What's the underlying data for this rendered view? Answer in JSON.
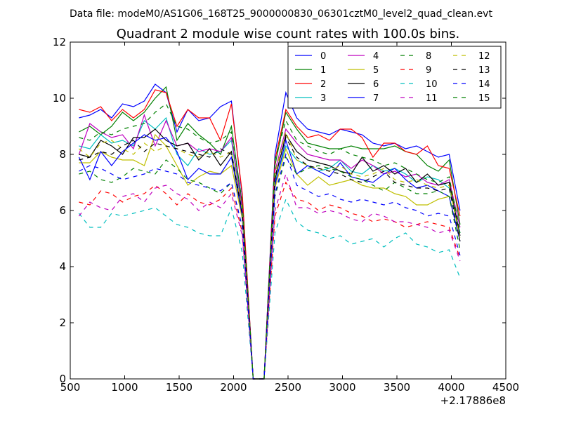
{
  "header": {
    "data_file": "Data file: modeM0/AS1G06_168T25_9000000830_06301cztM0_level2_quad_clean.evt"
  },
  "chart_data": {
    "type": "line",
    "title": "Quadrant 2 module wise count rates with 100.0s bins.",
    "xlabel": "",
    "ylabel": "",
    "x_offset_label": "+2.17886e8",
    "xlim": [
      500,
      4500
    ],
    "ylim": [
      0,
      12
    ],
    "xticks": [
      500,
      1000,
      1500,
      2000,
      2500,
      3000,
      3500,
      4000,
      4500
    ],
    "yticks": [
      0,
      2,
      4,
      6,
      8,
      10,
      12
    ],
    "grid": false,
    "legend": {
      "placement": "top-right",
      "columns": 4
    },
    "x": [
      580,
      680,
      780,
      880,
      980,
      1080,
      1180,
      1280,
      1380,
      1480,
      1580,
      1680,
      1780,
      1880,
      1980,
      2080,
      2180,
      2280,
      2380,
      2480,
      2580,
      2680,
      2780,
      2880,
      2980,
      3080,
      3180,
      3280,
      3380,
      3480,
      3580,
      3680,
      3780,
      3880,
      3980,
      4080
    ],
    "series": [
      {
        "name": "0",
        "color": "#0000ff",
        "dash": "solid",
        "values": [
          9.3,
          9.4,
          9.6,
          9.3,
          9.8,
          9.7,
          9.9,
          10.5,
          10.2,
          8.8,
          9.6,
          9.2,
          9.3,
          9.7,
          9.9,
          6.5,
          0.0,
          0.0,
          8.0,
          10.2,
          9.3,
          8.9,
          8.8,
          8.7,
          8.9,
          8.8,
          8.7,
          8.4,
          8.3,
          8.4,
          8.2,
          8.3,
          8.1,
          7.9,
          8.0,
          6.0
        ]
      },
      {
        "name": "1",
        "color": "#008000",
        "dash": "solid",
        "values": [
          8.8,
          9.0,
          8.7,
          9.0,
          9.5,
          9.2,
          9.5,
          10.0,
          10.4,
          8.5,
          9.1,
          8.7,
          8.4,
          8.0,
          9.0,
          6.2,
          0.0,
          0.0,
          7.6,
          9.5,
          8.9,
          8.4,
          8.3,
          8.2,
          8.2,
          8.3,
          8.2,
          8.2,
          8.2,
          8.3,
          8.1,
          8.0,
          7.6,
          7.4,
          7.8,
          5.5
        ]
      },
      {
        "name": "2",
        "color": "#ff0000",
        "dash": "solid",
        "values": [
          9.6,
          9.5,
          9.7,
          9.2,
          9.6,
          9.3,
          9.6,
          10.3,
          10.2,
          9.0,
          9.6,
          9.3,
          9.3,
          8.5,
          9.8,
          6.6,
          0.0,
          0.0,
          7.8,
          9.6,
          9.0,
          8.6,
          8.7,
          8.5,
          8.9,
          8.9,
          8.6,
          7.9,
          8.4,
          8.4,
          8.1,
          8.0,
          8.3,
          7.6,
          7.5,
          5.8
        ]
      },
      {
        "name": "3",
        "color": "#00bfbf",
        "dash": "solid",
        "values": [
          8.3,
          8.2,
          8.7,
          8.4,
          8.5,
          8.3,
          9.2,
          8.9,
          9.3,
          8.0,
          7.6,
          8.2,
          8.0,
          8.1,
          8.5,
          6.0,
          0.0,
          0.0,
          7.0,
          8.3,
          7.8,
          7.6,
          7.4,
          7.5,
          7.8,
          7.4,
          7.3,
          7.6,
          7.4,
          7.5,
          7.3,
          7.0,
          7.2,
          7.1,
          6.8,
          5.2
        ]
      },
      {
        "name": "4",
        "color": "#bf00bf",
        "dash": "solid",
        "values": [
          8.0,
          9.1,
          8.8,
          8.6,
          8.7,
          8.2,
          9.4,
          8.3,
          9.2,
          8.3,
          8.4,
          8.1,
          8.2,
          8.1,
          8.6,
          6.1,
          0.0,
          0.0,
          7.4,
          8.9,
          8.4,
          8.0,
          7.9,
          7.8,
          7.8,
          7.5,
          7.8,
          7.6,
          7.3,
          7.4,
          7.2,
          7.3,
          7.0,
          6.9,
          7.1,
          5.4
        ]
      },
      {
        "name": "5",
        "color": "#bfbf00",
        "dash": "solid",
        "values": [
          7.7,
          7.7,
          8.1,
          7.9,
          7.8,
          7.8,
          7.6,
          8.7,
          8.3,
          7.6,
          6.9,
          7.2,
          7.4,
          7.3,
          7.6,
          5.7,
          0.0,
          0.0,
          6.8,
          8.2,
          7.3,
          6.9,
          7.2,
          6.9,
          7.0,
          7.1,
          6.9,
          6.8,
          6.8,
          6.6,
          6.5,
          6.2,
          6.2,
          6.4,
          6.5,
          4.9
        ]
      },
      {
        "name": "6",
        "color": "#000000",
        "dash": "solid",
        "values": [
          8.0,
          7.9,
          8.5,
          8.3,
          8.0,
          8.6,
          8.6,
          8.9,
          8.5,
          8.3,
          8.4,
          7.8,
          8.2,
          7.6,
          8.1,
          5.9,
          0.0,
          0.0,
          7.1,
          8.7,
          8.1,
          7.8,
          7.7,
          7.6,
          7.4,
          7.3,
          7.9,
          7.4,
          7.6,
          7.3,
          7.5,
          7.0,
          7.3,
          6.9,
          7.0,
          5.1
        ]
      },
      {
        "name": "7",
        "color": "#0000ff",
        "dash": "solid",
        "values": [
          7.9,
          7.1,
          8.1,
          7.6,
          8.1,
          8.4,
          8.7,
          8.5,
          8.6,
          8.1,
          7.1,
          7.5,
          7.3,
          7.3,
          7.9,
          5.8,
          0.0,
          0.0,
          6.9,
          8.5,
          7.3,
          7.6,
          7.4,
          7.2,
          7.7,
          7.2,
          7.1,
          7.0,
          7.3,
          7.5,
          7.1,
          6.8,
          6.9,
          6.7,
          6.5,
          4.9
        ]
      },
      {
        "name": "8",
        "color": "#008000",
        "dash": "dashed",
        "values": [
          7.3,
          7.4,
          7.1,
          7.0,
          7.2,
          7.5,
          7.4,
          7.3,
          7.8,
          7.5,
          7.1,
          7.0,
          6.8,
          6.6,
          7.0,
          5.4,
          0.0,
          0.0,
          6.5,
          7.9,
          7.3,
          7.5,
          7.6,
          7.5,
          7.4,
          7.2,
          7.1,
          6.9,
          6.7,
          7.0,
          6.8,
          6.6,
          6.6,
          6.7,
          6.5,
          4.6
        ]
      },
      {
        "name": "9",
        "color": "#ff0000",
        "dash": "dashed",
        "values": [
          6.3,
          6.2,
          6.7,
          6.6,
          6.3,
          6.5,
          6.6,
          6.9,
          6.6,
          6.2,
          6.6,
          6.3,
          6.2,
          6.4,
          6.8,
          5.2,
          0.0,
          0.0,
          5.8,
          7.0,
          6.4,
          6.3,
          6.0,
          6.2,
          6.1,
          5.9,
          5.8,
          5.6,
          5.7,
          5.6,
          5.4,
          5.5,
          5.6,
          5.5,
          5.4,
          4.3
        ]
      },
      {
        "name": "10",
        "color": "#00bfbf",
        "dash": "dashed",
        "values": [
          5.9,
          5.4,
          5.4,
          5.9,
          5.8,
          5.9,
          6.0,
          6.1,
          5.8,
          5.5,
          5.4,
          5.2,
          5.1,
          5.1,
          6.1,
          4.5,
          0.0,
          0.0,
          5.2,
          6.4,
          5.6,
          5.3,
          5.2,
          5.0,
          5.1,
          4.8,
          4.9,
          5.0,
          4.7,
          5.0,
          5.2,
          4.8,
          4.7,
          4.5,
          4.6,
          3.6
        ]
      },
      {
        "name": "11",
        "color": "#bf00bf",
        "dash": "dashed",
        "values": [
          5.8,
          6.3,
          6.1,
          6.0,
          6.5,
          6.6,
          6.3,
          6.8,
          6.9,
          6.6,
          6.4,
          6.0,
          6.3,
          6.1,
          6.6,
          5.1,
          0.0,
          0.0,
          6.0,
          7.3,
          6.1,
          6.1,
          5.9,
          6.0,
          5.9,
          5.7,
          5.6,
          5.9,
          5.8,
          5.6,
          5.6,
          5.5,
          5.4,
          5.2,
          5.3,
          4.2
        ]
      },
      {
        "name": "12",
        "color": "#bfbf00",
        "dash": "dashed",
        "values": [
          8.2,
          7.9,
          8.4,
          8.5,
          8.2,
          8.0,
          8.4,
          8.1,
          8.3,
          8.2,
          8.0,
          7.9,
          8.1,
          7.9,
          8.1,
          6.0,
          0.0,
          0.0,
          7.3,
          8.8,
          7.8,
          7.6,
          7.5,
          7.4,
          7.6,
          7.3,
          7.2,
          7.3,
          7.5,
          7.1,
          7.0,
          7.1,
          6.9,
          6.8,
          6.9,
          5.0
        ]
      },
      {
        "name": "13",
        "color": "#000000",
        "dash": "dashed",
        "values": [
          7.8,
          7.9,
          8.1,
          8.0,
          8.3,
          8.5,
          8.1,
          8.4,
          8.3,
          8.2,
          8.1,
          8.0,
          7.9,
          8.2,
          8.0,
          5.9,
          0.0,
          0.0,
          7.2,
          8.6,
          7.9,
          7.6,
          7.5,
          7.4,
          7.3,
          7.1,
          7.0,
          7.2,
          7.4,
          7.0,
          6.9,
          6.8,
          6.8,
          6.7,
          6.8,
          4.9
        ]
      },
      {
        "name": "14",
        "color": "#0000ff",
        "dash": "dashed",
        "values": [
          7.4,
          7.6,
          7.5,
          7.3,
          7.1,
          7.2,
          7.3,
          7.5,
          7.4,
          7.3,
          7.0,
          6.9,
          6.8,
          6.7,
          7.0,
          5.4,
          0.0,
          0.0,
          6.6,
          8.0,
          6.9,
          6.7,
          6.5,
          6.6,
          6.4,
          6.3,
          6.4,
          6.3,
          6.2,
          6.3,
          6.1,
          6.0,
          5.8,
          5.9,
          5.8,
          4.4
        ]
      },
      {
        "name": "15",
        "color": "#008000",
        "dash": "dashed",
        "values": [
          8.6,
          8.5,
          8.8,
          8.7,
          8.9,
          9.0,
          9.1,
          9.5,
          9.8,
          9.0,
          8.9,
          8.6,
          8.4,
          8.5,
          8.8,
          6.3,
          0.0,
          0.0,
          7.8,
          9.2,
          8.5,
          8.3,
          8.1,
          8.0,
          8.2,
          8.0,
          7.9,
          7.8,
          7.6,
          7.7,
          7.5,
          7.3,
          7.1,
          7.0,
          7.2,
          5.2
        ]
      }
    ]
  }
}
